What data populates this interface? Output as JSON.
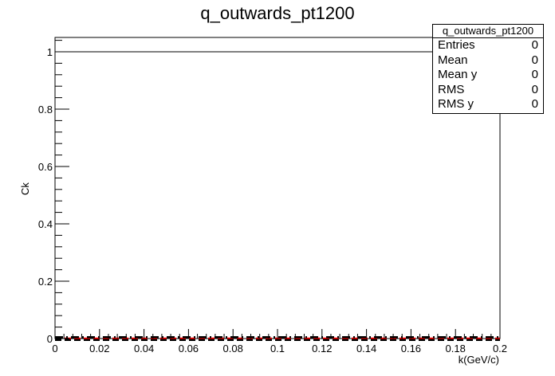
{
  "chart_data": {
    "type": "line",
    "title": "q_outwards_pt1200",
    "xlabel": "k(GeV/c)",
    "ylabel": "Ck",
    "xlim": [
      0,
      0.2
    ],
    "ylim": [
      0,
      1.05
    ],
    "x_ticks": [
      "0",
      "0.02",
      "0.04",
      "0.06",
      "0.08",
      "0.1",
      "0.12",
      "0.14",
      "0.16",
      "0.18",
      "0.2"
    ],
    "y_ticks": [
      "0",
      "0.2",
      "0.4",
      "0.6",
      "0.8",
      "1"
    ],
    "series": [
      {
        "style": "solid",
        "color": "#000000",
        "x": [
          0,
          0.2
        ],
        "y": [
          1,
          1
        ]
      },
      {
        "style": "dashed",
        "color": "#ff0000",
        "x": [
          0,
          0.2
        ],
        "y": [
          0,
          0
        ]
      },
      {
        "style": "dash-dot",
        "color": "#000000",
        "x": [
          0,
          0.2
        ],
        "y": [
          0.005,
          0.005
        ]
      },
      {
        "style": "dashed",
        "color": "#000000",
        "x": [
          0,
          0.2
        ],
        "y": [
          -0.005,
          -0.005
        ]
      }
    ],
    "grid": false
  },
  "stats_box": {
    "title": "q_outwards_pt1200",
    "rows": [
      {
        "label": "Entries",
        "value": "0"
      },
      {
        "label": "Mean",
        "value": "0"
      },
      {
        "label": "Mean y",
        "value": "0"
      },
      {
        "label": "RMS",
        "value": "0"
      },
      {
        "label": "RMS y",
        "value": "0"
      }
    ]
  }
}
